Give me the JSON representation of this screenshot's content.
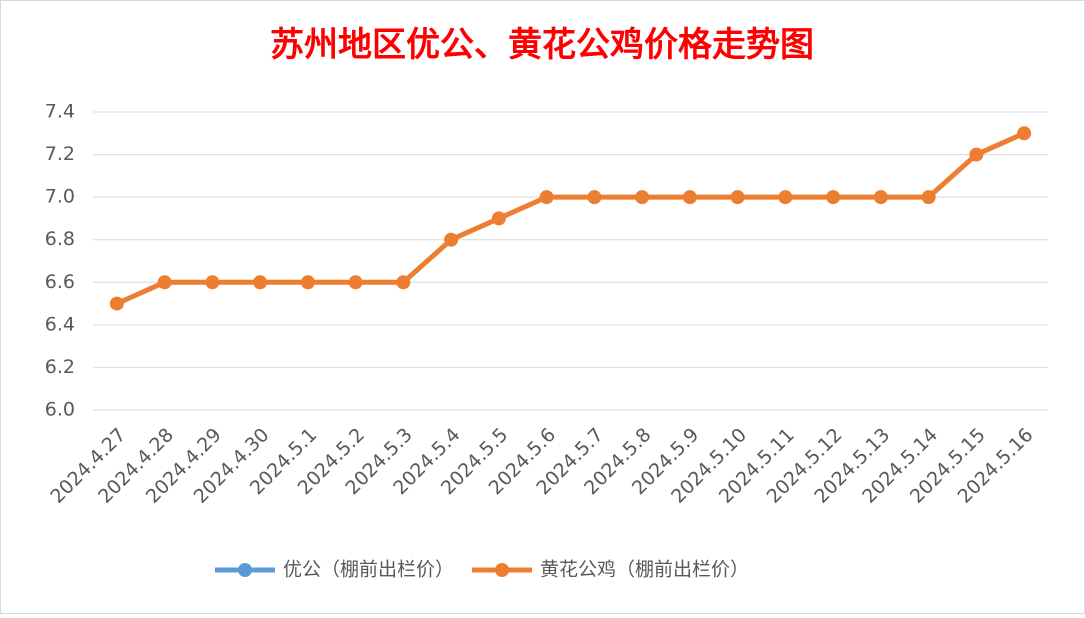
{
  "chart_data": {
    "type": "line",
    "title": "苏州地区优公、黄花公鸡价格走势图",
    "categories": [
      "2024.4.27",
      "2024.4.28",
      "2024.4.29",
      "2024.4.30",
      "2024.5.1",
      "2024.5.2",
      "2024.5.3",
      "2024.5.4",
      "2024.5.5",
      "2024.5.6",
      "2024.5.7",
      "2024.5.8",
      "2024.5.9",
      "2024.5.10",
      "2024.5.11",
      "2024.5.12",
      "2024.5.13",
      "2024.5.14",
      "2024.5.15",
      "2024.5.16"
    ],
    "series": [
      {
        "name": "优公（棚前出栏价）",
        "color": "#5b9bd5",
        "values": [
          null,
          null,
          null,
          null,
          null,
          null,
          null,
          null,
          null,
          null,
          null,
          null,
          null,
          null,
          null,
          null,
          null,
          null,
          null,
          null
        ]
      },
      {
        "name": "黄花公鸡（棚前出栏价）",
        "color": "#ed7d31",
        "values": [
          6.5,
          6.6,
          6.6,
          6.6,
          6.6,
          6.6,
          6.6,
          6.8,
          6.9,
          7.0,
          7.0,
          7.0,
          7.0,
          7.0,
          7.0,
          7.0,
          7.0,
          7.0,
          7.2,
          7.3
        ]
      }
    ],
    "ylim": [
      6,
      7.4
    ],
    "yticks": [
      {
        "value": 6,
        "label": "6.0"
      },
      6.2,
      6.4,
      6.6,
      6.8,
      {
        "value": 7,
        "label": "7.0"
      },
      7.2,
      7.4
    ],
    "grid": true,
    "legend": "bottom"
  }
}
